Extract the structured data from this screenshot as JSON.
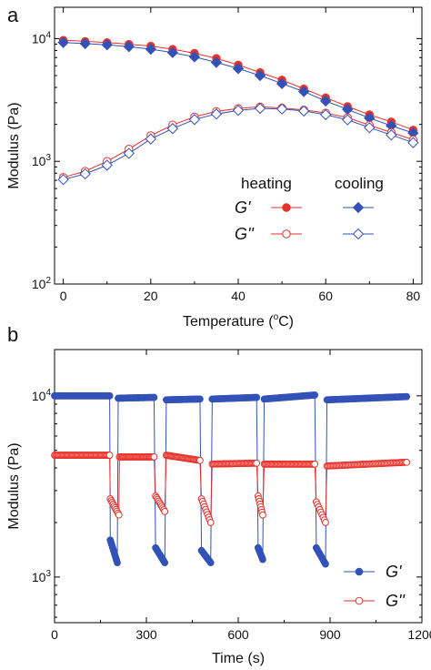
{
  "chart_data": [
    {
      "panel_label": "a",
      "type": "line",
      "xlabel": "Temperature (",
      "xlabel_sup": "o",
      "xlabel_tail": "C)",
      "ylabel": "Modulus (Pa)",
      "xlim": [
        -2,
        82
      ],
      "ylim": [
        100,
        18000
      ],
      "yscale": "log",
      "xticks": [
        0,
        20,
        40,
        60,
        80
      ],
      "yticks": [
        {
          "base": "10",
          "exp": "2",
          "value": 100
        },
        {
          "base": "10",
          "exp": "3",
          "value": 1000
        },
        {
          "base": "10",
          "exp": "4",
          "value": 10000
        }
      ],
      "legend": {
        "placement": "center-right",
        "col_headers": [
          "heating",
          "cooling"
        ],
        "row_labels": [
          "G'",
          "G''"
        ]
      },
      "series": [
        {
          "key": "Gp_heat",
          "color": "#e8322b",
          "marker": "circle",
          "filled": true,
          "x": [
            0,
            5,
            10,
            15,
            20,
            25,
            30,
            35,
            40,
            45,
            50,
            55,
            60,
            65,
            70,
            75,
            80
          ],
          "y": [
            9700,
            9500,
            9300,
            9000,
            8700,
            8200,
            7600,
            6900,
            6100,
            5300,
            4600,
            3900,
            3300,
            2800,
            2400,
            2100,
            1800
          ]
        },
        {
          "key": "Gp_cool",
          "color": "#3352b8",
          "marker": "diamond",
          "filled": true,
          "x": [
            0,
            5,
            10,
            15,
            20,
            25,
            30,
            35,
            40,
            45,
            50,
            55,
            60,
            65,
            70,
            75,
            80
          ],
          "y": [
            9300,
            9100,
            8900,
            8600,
            8200,
            7700,
            7100,
            6400,
            5700,
            5000,
            4300,
            3700,
            3100,
            2650,
            2250,
            1950,
            1700
          ]
        },
        {
          "key": "Gpp_heat",
          "color": "#e8322b",
          "marker": "circle",
          "filled": false,
          "x": [
            0,
            5,
            10,
            15,
            20,
            25,
            30,
            35,
            40,
            45,
            50,
            55,
            60,
            65,
            70,
            75,
            80
          ],
          "y": [
            740,
            830,
            1000,
            1260,
            1620,
            1980,
            2300,
            2550,
            2700,
            2780,
            2720,
            2620,
            2480,
            2270,
            1970,
            1720,
            1500
          ]
        },
        {
          "key": "Gpp_cool",
          "color": "#3352b8",
          "marker": "diamond",
          "filled": false,
          "x": [
            0,
            5,
            10,
            15,
            20,
            25,
            30,
            35,
            40,
            45,
            50,
            55,
            60,
            65,
            70,
            75,
            80
          ],
          "y": [
            710,
            790,
            930,
            1160,
            1520,
            1850,
            2190,
            2430,
            2600,
            2700,
            2670,
            2570,
            2400,
            2180,
            1880,
            1640,
            1420
          ]
        }
      ]
    },
    {
      "panel_label": "b",
      "type": "scatter",
      "xlabel": "Time (s)",
      "ylabel": "Modulus (Pa)",
      "xlim": [
        0,
        1200
      ],
      "ylim": [
        560,
        18000
      ],
      "yscale": "log",
      "xticks": [
        0,
        300,
        600,
        900,
        1200
      ],
      "yticks": [
        {
          "base": "10",
          "exp": "3",
          "value": 1000
        },
        {
          "base": "10",
          "exp": "4",
          "value": 10000
        }
      ],
      "legend": {
        "placement": "bottom-right",
        "row_labels": [
          "G'",
          "G''"
        ]
      },
      "series": [
        {
          "key": "Gp",
          "color": "#3352b8",
          "marker": "circle",
          "filled": true,
          "segments": [
            {
              "x": [
                0,
                180
              ],
              "y": [
                10000,
                10000
              ],
              "n": 50
            },
            {
              "x": [
                182,
                205
              ],
              "y": [
                1600,
                1200
              ],
              "n": 10
            },
            {
              "x": [
                208,
                325
              ],
              "y": [
                9700,
                9800
              ],
              "n": 34
            },
            {
              "x": [
                330,
                360
              ],
              "y": [
                1450,
                1200
              ],
              "n": 10
            },
            {
              "x": [
                365,
                475
              ],
              "y": [
                9500,
                9600
              ],
              "n": 32
            },
            {
              "x": [
                480,
                510
              ],
              "y": [
                1400,
                1200
              ],
              "n": 10
            },
            {
              "x": [
                515,
                660
              ],
              "y": [
                9600,
                9800
              ],
              "n": 38
            },
            {
              "x": [
                665,
                680
              ],
              "y": [
                1450,
                1250
              ],
              "n": 8
            },
            {
              "x": [
                685,
                850
              ],
              "y": [
                9600,
                10100
              ],
              "n": 44
            },
            {
              "x": [
                855,
                885
              ],
              "y": [
                1450,
                1180
              ],
              "n": 9
            },
            {
              "x": [
                890,
                1150
              ],
              "y": [
                9500,
                9900
              ],
              "n": 62
            }
          ]
        },
        {
          "key": "Gpp",
          "color": "#e8322b",
          "marker": "circle",
          "filled": false,
          "segments": [
            {
              "x": [
                0,
                180
              ],
              "y": [
                4700,
                4700
              ],
              "n": 50
            },
            {
              "x": [
                182,
                210
              ],
              "y": [
                2700,
                2200
              ],
              "n": 10
            },
            {
              "x": [
                212,
                325
              ],
              "y": [
                4600,
                4600
              ],
              "n": 34
            },
            {
              "x": [
                330,
                360
              ],
              "y": [
                2800,
                2300
              ],
              "n": 10
            },
            {
              "x": [
                365,
                475
              ],
              "y": [
                4700,
                4400
              ],
              "n": 32
            },
            {
              "x": [
                480,
                510
              ],
              "y": [
                2700,
                2000
              ],
              "n": 10
            },
            {
              "x": [
                515,
                660
              ],
              "y": [
                4200,
                4250
              ],
              "n": 38
            },
            {
              "x": [
                665,
                680
              ],
              "y": [
                2800,
                2200
              ],
              "n": 8
            },
            {
              "x": [
                685,
                850
              ],
              "y": [
                4200,
                4200
              ],
              "n": 44
            },
            {
              "x": [
                855,
                885
              ],
              "y": [
                2600,
                2000
              ],
              "n": 9
            },
            {
              "x": [
                890,
                1150
              ],
              "y": [
                4100,
                4300
              ],
              "n": 62
            }
          ]
        }
      ]
    }
  ]
}
